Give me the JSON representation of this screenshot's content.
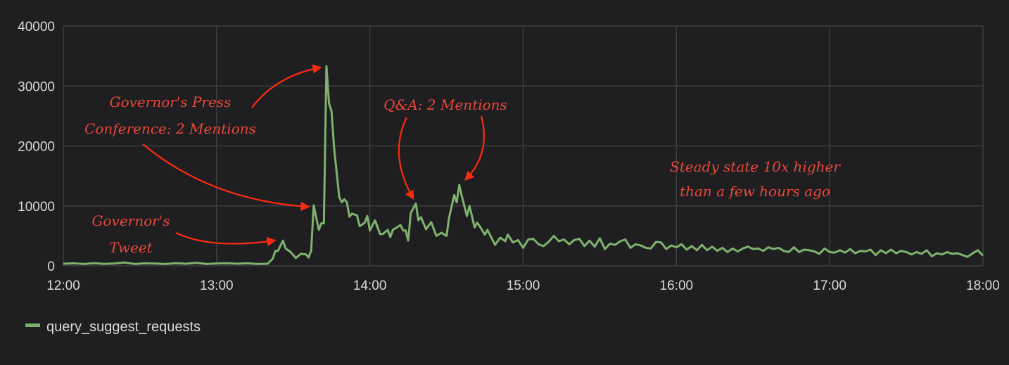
{
  "chart_data": {
    "type": "line",
    "title": "",
    "xlabel": "",
    "ylabel": "",
    "xlim": [
      "12:00",
      "18:00"
    ],
    "ylim": [
      0,
      40000
    ],
    "x_ticks": [
      "12:00",
      "13:00",
      "14:00",
      "15:00",
      "16:00",
      "17:00",
      "18:00"
    ],
    "y_ticks": [
      "0",
      "10000",
      "20000",
      "30000",
      "40000"
    ],
    "grid": true,
    "legend_position": "bottom-left",
    "background_color": "#1f1f21",
    "series": [
      {
        "name": "query_suggest_requests",
        "color": "#7eb26d",
        "points": [
          [
            "12:00",
            350
          ],
          [
            "12:04",
            420
          ],
          [
            "12:08",
            300
          ],
          [
            "12:12",
            450
          ],
          [
            "12:16",
            320
          ],
          [
            "12:20",
            400
          ],
          [
            "12:24",
            550
          ],
          [
            "12:28",
            300
          ],
          [
            "12:32",
            420
          ],
          [
            "12:36",
            380
          ],
          [
            "12:40",
            300
          ],
          [
            "12:44",
            450
          ],
          [
            "12:48",
            350
          ],
          [
            "12:52",
            520
          ],
          [
            "12:56",
            300
          ],
          [
            "13:00",
            400
          ],
          [
            "13:04",
            450
          ],
          [
            "13:08",
            350
          ],
          [
            "13:12",
            420
          ],
          [
            "13:16",
            300
          ],
          [
            "13:20",
            350
          ],
          [
            "13:22",
            1200
          ],
          [
            "13:23",
            2500
          ],
          [
            "13:24",
            2500
          ],
          [
            "13:26",
            4200
          ],
          [
            "13:27",
            2900
          ],
          [
            "13:29",
            2300
          ],
          [
            "13:31",
            1300
          ],
          [
            "13:33",
            2000
          ],
          [
            "13:35",
            1900
          ],
          [
            "13:36",
            1400
          ],
          [
            "13:37",
            2500
          ],
          [
            "13:38",
            10100
          ],
          [
            "13:40",
            6000
          ],
          [
            "13:41",
            7100
          ],
          [
            "13:42",
            7100
          ],
          [
            "13:43",
            33300
          ],
          [
            "13:44",
            27100
          ],
          [
            "13:45",
            25800
          ],
          [
            "13:46",
            19700
          ],
          [
            "13:48",
            11500
          ],
          [
            "13:49",
            10600
          ],
          [
            "13:50",
            11100
          ],
          [
            "13:51",
            10600
          ],
          [
            "13:52",
            8200
          ],
          [
            "13:53",
            8700
          ],
          [
            "13:55",
            8400
          ],
          [
            "13:56",
            6600
          ],
          [
            "13:58",
            7200
          ],
          [
            "13:59",
            8300
          ],
          [
            "14:00",
            5900
          ],
          [
            "14:02",
            7600
          ],
          [
            "14:04",
            5300
          ],
          [
            "14:05",
            5300
          ],
          [
            "14:07",
            6000
          ],
          [
            "14:08",
            4800
          ],
          [
            "14:09",
            6000
          ],
          [
            "14:12",
            6800
          ],
          [
            "14:13",
            5900
          ],
          [
            "14:14",
            5900
          ],
          [
            "14:15",
            4200
          ],
          [
            "14:16",
            8800
          ],
          [
            "14:18",
            10400
          ],
          [
            "14:19",
            7600
          ],
          [
            "14:20",
            8100
          ],
          [
            "14:22",
            6100
          ],
          [
            "14:24",
            7300
          ],
          [
            "14:26",
            5000
          ],
          [
            "14:28",
            5500
          ],
          [
            "14:30",
            5000
          ],
          [
            "14:31",
            8000
          ],
          [
            "14:33",
            11800
          ],
          [
            "14:34",
            10600
          ],
          [
            "14:35",
            13500
          ],
          [
            "14:36",
            11600
          ],
          [
            "14:38",
            8300
          ],
          [
            "14:39",
            10000
          ],
          [
            "14:41",
            6400
          ],
          [
            "14:42",
            7200
          ],
          [
            "14:43",
            6600
          ],
          [
            "14:45",
            5200
          ],
          [
            "14:46",
            6000
          ],
          [
            "14:49",
            3500
          ],
          [
            "14:51",
            4700
          ],
          [
            "14:53",
            4100
          ],
          [
            "14:54",
            5200
          ],
          [
            "14:56",
            3900
          ],
          [
            "14:58",
            4300
          ],
          [
            "15:00",
            3000
          ],
          [
            "15:02",
            4400
          ],
          [
            "15:04",
            4500
          ],
          [
            "15:06",
            3600
          ],
          [
            "15:08",
            3300
          ],
          [
            "15:10",
            4000
          ],
          [
            "15:12",
            5000
          ],
          [
            "15:14",
            4100
          ],
          [
            "15:16",
            4400
          ],
          [
            "15:18",
            3600
          ],
          [
            "15:20",
            4300
          ],
          [
            "15:22",
            4500
          ],
          [
            "15:24",
            3300
          ],
          [
            "15:26",
            4200
          ],
          [
            "15:28",
            3200
          ],
          [
            "15:30",
            4600
          ],
          [
            "15:32",
            2800
          ],
          [
            "15:34",
            3700
          ],
          [
            "15:36",
            3500
          ],
          [
            "15:38",
            4100
          ],
          [
            "15:40",
            4400
          ],
          [
            "15:42",
            3000
          ],
          [
            "15:44",
            3600
          ],
          [
            "15:46",
            3400
          ],
          [
            "15:48",
            3000
          ],
          [
            "15:50",
            2900
          ],
          [
            "15:52",
            4000
          ],
          [
            "15:54",
            3900
          ],
          [
            "15:56",
            2800
          ],
          [
            "15:58",
            3400
          ],
          [
            "16:00",
            3100
          ],
          [
            "16:02",
            3600
          ],
          [
            "16:04",
            2700
          ],
          [
            "16:06",
            3300
          ],
          [
            "16:08",
            2600
          ],
          [
            "16:10",
            3500
          ],
          [
            "16:12",
            2600
          ],
          [
            "16:14",
            3200
          ],
          [
            "16:16",
            2500
          ],
          [
            "16:18",
            3000
          ],
          [
            "16:20",
            2300
          ],
          [
            "16:22",
            2900
          ],
          [
            "16:24",
            2400
          ],
          [
            "16:26",
            2900
          ],
          [
            "16:28",
            3200
          ],
          [
            "16:30",
            2800
          ],
          [
            "16:32",
            2900
          ],
          [
            "16:34",
            2500
          ],
          [
            "16:36",
            3100
          ],
          [
            "16:38",
            2800
          ],
          [
            "16:40",
            3000
          ],
          [
            "16:42",
            2500
          ],
          [
            "16:44",
            2300
          ],
          [
            "16:46",
            3100
          ],
          [
            "16:48",
            2300
          ],
          [
            "16:50",
            2700
          ],
          [
            "16:52",
            2600
          ],
          [
            "16:54",
            2400
          ],
          [
            "16:56",
            2000
          ],
          [
            "16:58",
            2900
          ],
          [
            "17:00",
            2300
          ],
          [
            "17:02",
            2200
          ],
          [
            "17:04",
            2600
          ],
          [
            "17:06",
            2200
          ],
          [
            "17:08",
            2800
          ],
          [
            "17:10",
            2100
          ],
          [
            "17:12",
            2500
          ],
          [
            "17:14",
            2400
          ],
          [
            "17:16",
            2700
          ],
          [
            "17:18",
            1800
          ],
          [
            "17:20",
            2600
          ],
          [
            "17:22",
            2100
          ],
          [
            "17:24",
            2700
          ],
          [
            "17:26",
            2100
          ],
          [
            "17:28",
            2500
          ],
          [
            "17:30",
            2300
          ],
          [
            "17:32",
            1900
          ],
          [
            "17:34",
            2300
          ],
          [
            "17:36",
            2000
          ],
          [
            "17:38",
            2600
          ],
          [
            "17:40",
            1600
          ],
          [
            "17:42",
            2100
          ],
          [
            "17:44",
            1900
          ],
          [
            "17:46",
            2300
          ],
          [
            "17:48",
            2000
          ],
          [
            "17:50",
            2100
          ],
          [
            "17:52",
            1800
          ],
          [
            "17:54",
            1500
          ],
          [
            "17:56",
            2100
          ],
          [
            "17:58",
            2600
          ],
          [
            "18:00",
            1700
          ]
        ]
      }
    ],
    "annotations": {
      "color": "#e8473a",
      "press_line1": "Governor's Press",
      "press_line2": "Conference: 2 Mentions",
      "qa": "Q&A: 2 Mentions",
      "steady_line1": "Steady state 10x higher",
      "steady_line2": "than a few hours ago",
      "tweet_line1": "Governor's",
      "tweet_line2": "Tweet"
    }
  },
  "legend": {
    "label": "query_suggest_requests"
  }
}
